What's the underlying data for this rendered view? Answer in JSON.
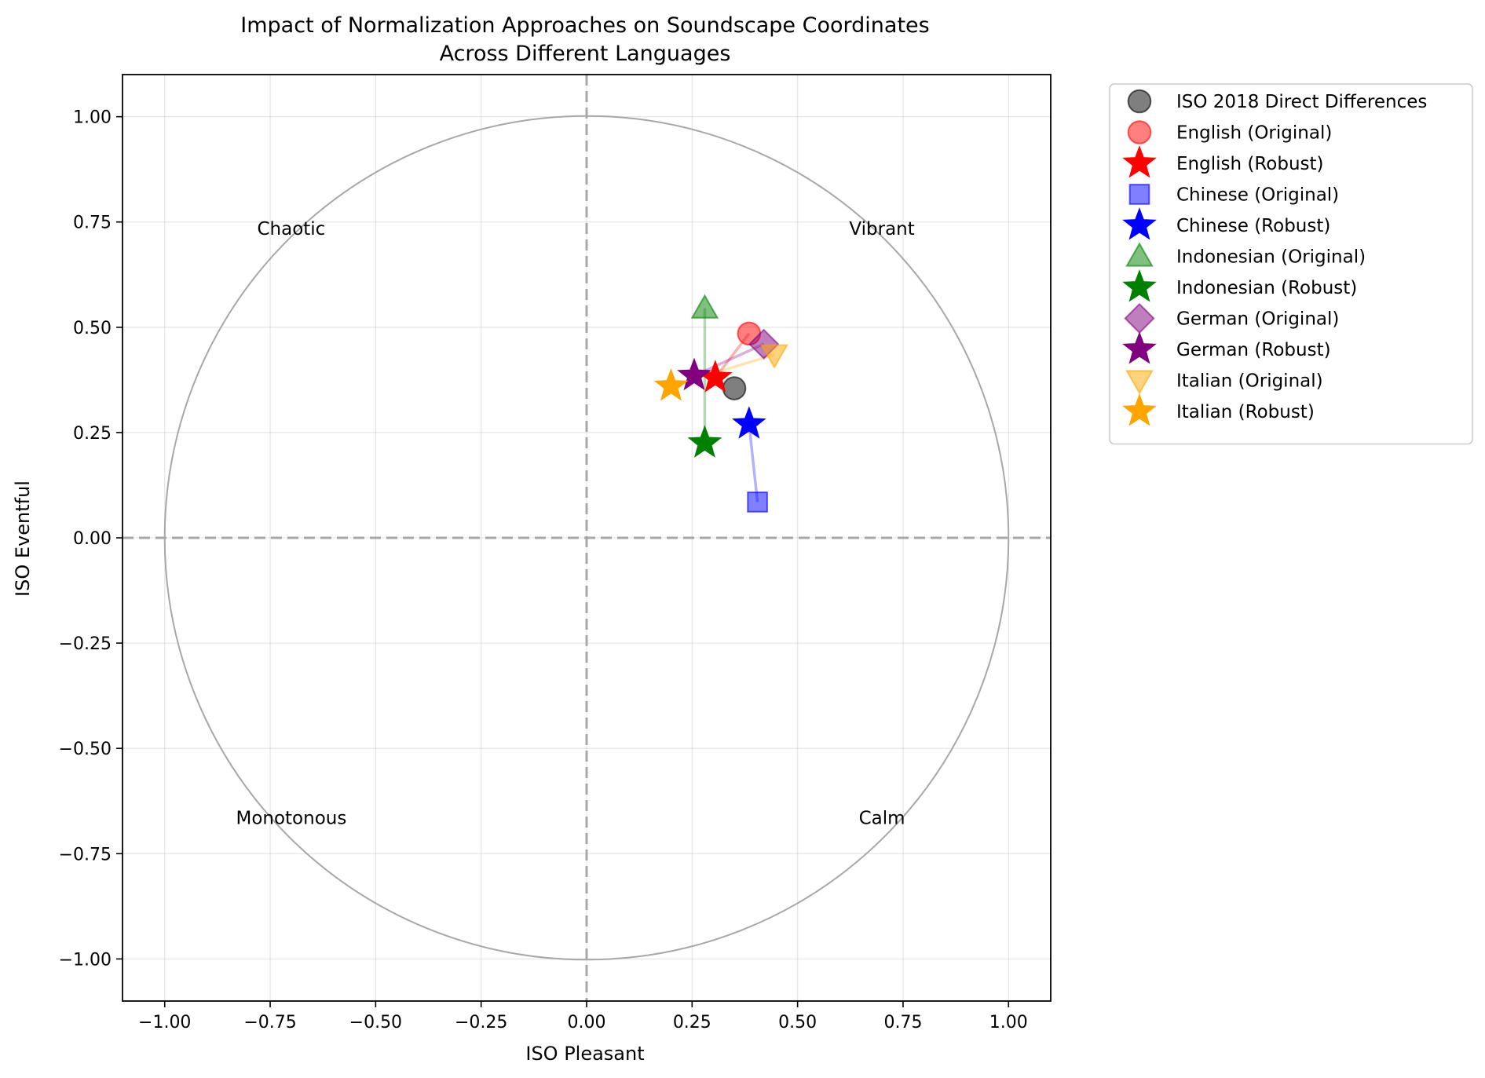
{
  "chart_data": {
    "type": "scatter",
    "title_line1": "Impact of Normalization Approaches on Soundscape Coordinates",
    "title_line2": "Across Different Languages",
    "xlabel": "ISO Pleasant",
    "ylabel": "ISO Eventful",
    "xlim": [
      -1.1,
      1.1
    ],
    "ylim": [
      -1.1,
      1.1
    ],
    "grid": true,
    "legend_position": "outside-top-right",
    "xticks": [
      -1.0,
      -0.75,
      -0.5,
      -0.25,
      0.0,
      0.25,
      0.5,
      0.75,
      1.0
    ],
    "yticks": [
      -1.0,
      -0.75,
      -0.5,
      -0.25,
      0.0,
      0.25,
      0.5,
      0.75,
      1.0
    ],
    "xtick_labels": [
      "−1.00",
      "−0.75",
      "−0.50",
      "−0.25",
      "0.00",
      "0.25",
      "0.50",
      "0.75",
      "1.00"
    ],
    "ytick_labels": [
      "−1.00",
      "−0.75",
      "−0.50",
      "−0.25",
      "0.00",
      "0.25",
      "0.50",
      "0.75",
      "1.00"
    ],
    "unit_circle_radius": 1.0,
    "regions": [
      {
        "label": "Chaotic",
        "x": -0.7,
        "y": 0.72
      },
      {
        "label": "Vibrant",
        "x": 0.7,
        "y": 0.72
      },
      {
        "label": "Monotonous",
        "x": -0.7,
        "y": -0.68
      },
      {
        "label": "Calm",
        "x": 0.7,
        "y": -0.68
      }
    ],
    "series": [
      {
        "name": "ISO 2018 Direct Differences",
        "marker": "circle",
        "color": "#000000",
        "alpha": 0.5,
        "x": 0.35,
        "y": 0.355
      },
      {
        "name": "English (Original)",
        "marker": "circle",
        "color": "#ff0000",
        "alpha": 0.5,
        "x": 0.385,
        "y": 0.485
      },
      {
        "name": "English (Robust)",
        "marker": "star",
        "color": "#ff0000",
        "alpha": 1.0,
        "x": 0.305,
        "y": 0.38
      },
      {
        "name": "Chinese (Original)",
        "marker": "square",
        "color": "#0000ff",
        "alpha": 0.5,
        "x": 0.405,
        "y": 0.085
      },
      {
        "name": "Chinese (Robust)",
        "marker": "star",
        "color": "#0000ff",
        "alpha": 1.0,
        "x": 0.385,
        "y": 0.27
      },
      {
        "name": "Indonesian (Original)",
        "marker": "triangle-up",
        "color": "#008000",
        "alpha": 0.5,
        "x": 0.28,
        "y": 0.545
      },
      {
        "name": "Indonesian (Robust)",
        "marker": "star",
        "color": "#008000",
        "alpha": 1.0,
        "x": 0.28,
        "y": 0.225
      },
      {
        "name": "German (Original)",
        "marker": "diamond",
        "color": "#800080",
        "alpha": 0.5,
        "x": 0.42,
        "y": 0.46
      },
      {
        "name": "German (Robust)",
        "marker": "star",
        "color": "#800080",
        "alpha": 1.0,
        "x": 0.255,
        "y": 0.385
      },
      {
        "name": "Italian (Original)",
        "marker": "triangle-down",
        "color": "#ffa500",
        "alpha": 0.5,
        "x": 0.445,
        "y": 0.435
      },
      {
        "name": "Italian (Robust)",
        "marker": "star",
        "color": "#ffa500",
        "alpha": 1.0,
        "x": 0.2,
        "y": 0.36
      }
    ],
    "connectors": [
      {
        "from": "English (Original)",
        "to": "English (Robust)",
        "color": "#ff0000"
      },
      {
        "from": "Chinese (Original)",
        "to": "Chinese (Robust)",
        "color": "#0000ff"
      },
      {
        "from": "Indonesian (Original)",
        "to": "Indonesian (Robust)",
        "color": "#008000"
      },
      {
        "from": "German (Original)",
        "to": "German (Robust)",
        "color": "#800080"
      },
      {
        "from": "Italian (Original)",
        "to": "Italian (Robust)",
        "color": "#ffa500"
      }
    ]
  }
}
